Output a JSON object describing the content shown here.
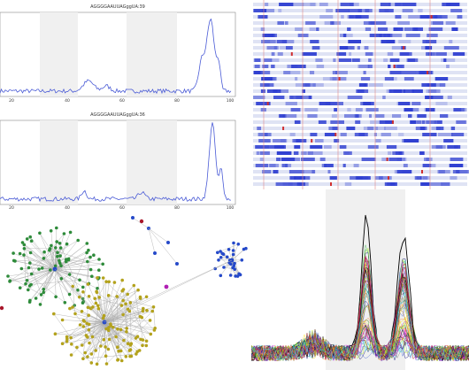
{
  "charts": {
    "top": {
      "title": "AGGGGAAUUAGggUA:39",
      "ticks": [
        "20",
        "40",
        "60",
        "80",
        "100"
      ]
    },
    "bottom": {
      "title": "AGGGGAAUUAGggUA:36",
      "ticks": [
        "20",
        "40",
        "60",
        "80",
        "100"
      ]
    }
  },
  "colors": {
    "line": "#4a5bd6",
    "band": "#f0f0f0",
    "heat_blue": "#2f3fd1",
    "heat_red": "#d12f2f",
    "network_green": "#2e8b3a",
    "network_olive": "#b3a21c",
    "network_blue": "#2549c9",
    "network_magenta": "#b01fb3"
  },
  "icons": {
    "node": "circle-node-icon"
  }
}
